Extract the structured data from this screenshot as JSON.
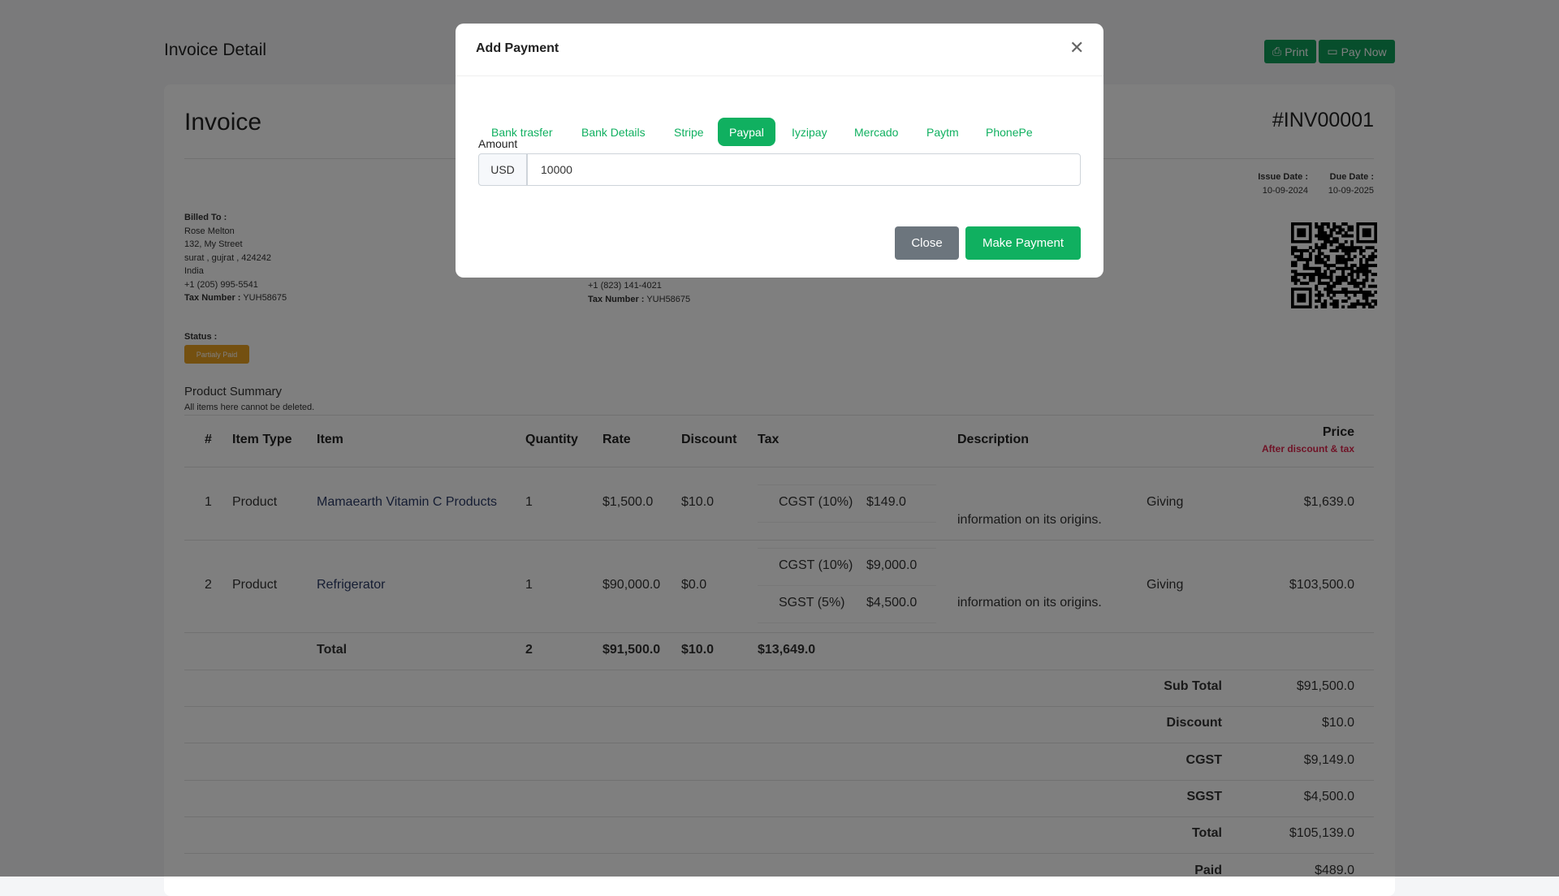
{
  "page": {
    "title": "Invoice Detail",
    "print_label": "Print",
    "pay_now_label": "Pay Now"
  },
  "invoice": {
    "heading": "Invoice",
    "number": "#INV00001",
    "issue_date_label": "Issue Date :",
    "issue_date": "10-09-2024",
    "due_date_label": "Due Date :",
    "due_date": "10-09-2025",
    "billed_to": {
      "label": "Billed To :",
      "name": "Rose Melton",
      "street": "132, My Street",
      "city": "surat , gujrat , 424242",
      "country": "India",
      "phone": "+1 (205) 995-5541",
      "tax_label": "Tax Number :",
      "tax": "YUH58675"
    },
    "shipped": {
      "phone": "+1 (823) 141-4021",
      "tax_label": "Tax Number :",
      "tax": "YUH58675"
    },
    "status_label": "Status :",
    "status": "Partialy Paid",
    "summary_title": "Product Summary",
    "summary_sub": "All items here cannot be deleted."
  },
  "table": {
    "headers": [
      "#",
      "Item Type",
      "Item",
      "Quantity",
      "Rate",
      "Discount",
      "Tax",
      "Description",
      "Price"
    ],
    "price_sub": "After discount & tax",
    "rows": [
      {
        "n": "1",
        "type": "Product",
        "item": "Mamaearth Vitamin C Products",
        "qty": "1",
        "rate": "$1,500.0",
        "discount": "$10.0",
        "taxes": [
          {
            "name": "CGST (10%)",
            "amount": "$149.0"
          }
        ],
        "desc1": "Giving",
        "desc2": "information on its origins.",
        "price": "$1,639.0"
      },
      {
        "n": "2",
        "type": "Product",
        "item": "Refrigerator",
        "qty": "1",
        "rate": "$90,000.0",
        "discount": "$0.0",
        "taxes": [
          {
            "name": "CGST (10%)",
            "amount": "$9,000.0"
          },
          {
            "name": "SGST (5%)",
            "amount": "$4,500.0"
          }
        ],
        "desc1": "Giving",
        "desc2": "information on its origins.",
        "price": "$103,500.0"
      }
    ],
    "total": {
      "label": "Total",
      "qty": "2",
      "rate": "$91,500.0",
      "discount": "$10.0",
      "tax": "$13,649.0"
    },
    "summary": [
      {
        "label": "Sub Total",
        "value": "$91,500.0"
      },
      {
        "label": "Discount",
        "value": "$10.0"
      },
      {
        "label": "CGST",
        "value": "$9,149.0"
      },
      {
        "label": "SGST",
        "value": "$4,500.0"
      },
      {
        "label": "Total",
        "value": "$105,139.0"
      },
      {
        "label": "Paid",
        "value": "$489.0"
      }
    ]
  },
  "modal": {
    "title": "Add Payment",
    "tabs": [
      "Bank trasfer",
      "Bank Details",
      "Stripe",
      "Paypal",
      "Iyzipay",
      "Mercado",
      "Paytm",
      "PhonePe"
    ],
    "active_tab": "Paypal",
    "amount_label": "Amount",
    "currency": "USD",
    "amount": "10000",
    "close_label": "Close",
    "submit_label": "Make Payment"
  },
  "colors": {
    "accent": "#10b060",
    "status": "#e8a020",
    "price_sub": "#e0284f",
    "close_btn": "#6c757d"
  }
}
